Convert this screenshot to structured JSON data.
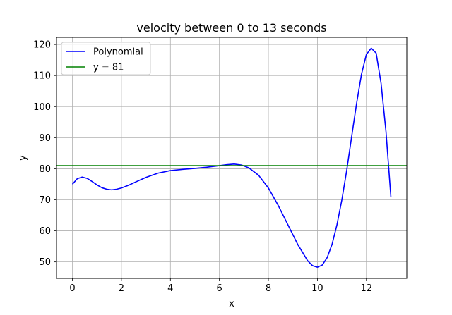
{
  "chart_data": {
    "type": "line",
    "title": "velocity between 0 to 13 seconds",
    "xlabel": "x",
    "ylabel": "y",
    "xlim": [
      -0.65,
      13.65
    ],
    "ylim": [
      44.7,
      122.3
    ],
    "xticks": [
      0,
      2,
      4,
      6,
      8,
      10,
      12
    ],
    "yticks": [
      50,
      60,
      70,
      80,
      90,
      100,
      110,
      120
    ],
    "grid": true,
    "legend_position": "top-left",
    "series": [
      {
        "name": "Polynomial",
        "color": "#0000ff",
        "x": [
          0,
          0.2,
          0.4,
          0.6,
          0.8,
          1.0,
          1.2,
          1.4,
          1.6,
          1.8,
          2.0,
          2.3,
          2.6,
          3.0,
          3.5,
          4.0,
          4.5,
          5.0,
          5.5,
          6.0,
          6.3,
          6.6,
          6.9,
          7.2,
          7.6,
          8.0,
          8.4,
          8.8,
          9.2,
          9.6,
          9.8,
          10.0,
          10.2,
          10.4,
          10.6,
          10.8,
          11.0,
          11.2,
          11.4,
          11.6,
          11.8,
          12.0,
          12.2,
          12.4,
          12.6,
          12.8,
          13.0
        ],
        "y": [
          75.0,
          76.8,
          77.3,
          76.9,
          75.9,
          74.8,
          73.9,
          73.4,
          73.2,
          73.4,
          73.8,
          74.7,
          75.8,
          77.2,
          78.6,
          79.4,
          79.8,
          80.1,
          80.5,
          81.0,
          81.3,
          81.5,
          81.2,
          80.3,
          77.9,
          73.8,
          68.2,
          61.9,
          55.6,
          50.4,
          48.8,
          48.3,
          49.0,
          51.4,
          55.7,
          62.0,
          70.0,
          79.6,
          90.4,
          101.0,
          110.4,
          116.8,
          118.8,
          117.2,
          107.5,
          92.0,
          71.0
        ]
      },
      {
        "name": "y = 81",
        "color": "#008000",
        "x": [
          -0.65,
          13.65
        ],
        "y": [
          81,
          81
        ]
      }
    ]
  }
}
